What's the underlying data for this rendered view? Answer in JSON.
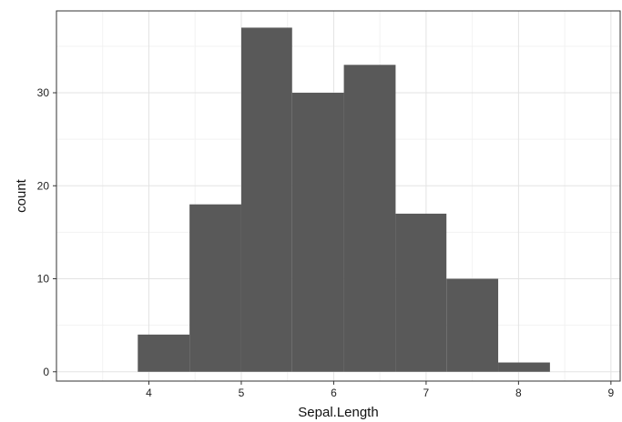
{
  "chart_data": {
    "type": "bar",
    "subtype": "histogram",
    "title": "",
    "xlabel": "Sepal.Length",
    "ylabel": "count",
    "xlim": [
      3.0,
      9.1
    ],
    "ylim": [
      -1.0,
      38.8
    ],
    "xticks": [
      4,
      5,
      6,
      7,
      8,
      9
    ],
    "yticks": [
      0,
      10,
      20,
      30
    ],
    "x_minor_grid": [
      3.5,
      4.5,
      5.5,
      6.5,
      7.5,
      8.5
    ],
    "y_minor_grid": [
      5,
      15,
      25,
      35
    ],
    "bins": [
      {
        "x0": 3.88,
        "x1": 4.44,
        "count": 4
      },
      {
        "x0": 4.44,
        "x1": 5.0,
        "count": 18
      },
      {
        "x0": 5.0,
        "x1": 5.55,
        "count": 37
      },
      {
        "x0": 5.55,
        "x1": 6.11,
        "count": 30
      },
      {
        "x0": 6.11,
        "x1": 6.67,
        "count": 33
      },
      {
        "x0": 6.67,
        "x1": 7.22,
        "count": 17
      },
      {
        "x0": 7.22,
        "x1": 7.78,
        "count": 10
      },
      {
        "x0": 7.78,
        "x1": 8.34,
        "count": 1
      }
    ],
    "grid": true,
    "colors": {
      "bar": "#595959",
      "grid_major": "#e3e3e3",
      "grid_minor": "#f2f2f2",
      "panel_border": "#333333",
      "background": "#ffffff"
    }
  }
}
